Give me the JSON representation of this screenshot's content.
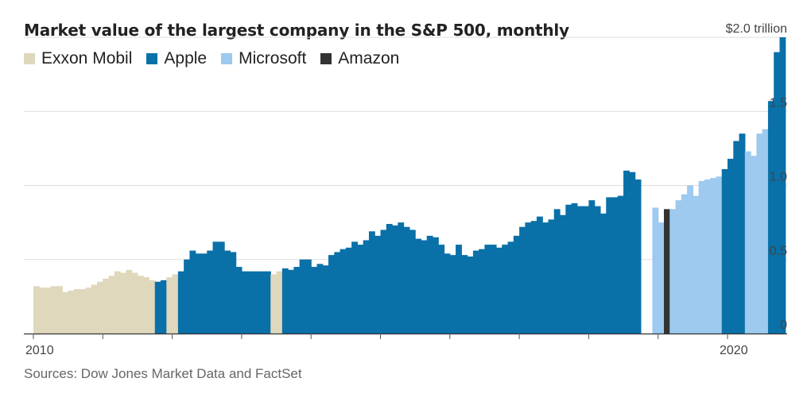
{
  "chart_data": {
    "type": "bar",
    "title": "Market value of the largest company in the S&P 500, monthly",
    "legend": [
      {
        "name": "Exxon Mobil",
        "color": "#dfd8bd"
      },
      {
        "name": "Apple",
        "color": "#0a70a8"
      },
      {
        "name": "Microsoft",
        "color": "#9dcaee"
      },
      {
        "name": "Amazon",
        "color": "#333333"
      }
    ],
    "legend_position": "top-left",
    "y_axis": {
      "ylim": [
        0,
        2.0
      ],
      "ticks": [
        {
          "value": 0,
          "label": "0"
        },
        {
          "value": 0.5,
          "label": "0.5"
        },
        {
          "value": 1.0,
          "label": "1.0"
        },
        {
          "value": 1.5,
          "label": "1.5"
        },
        {
          "value": 2.0,
          "label": "$2.0 trillion"
        }
      ],
      "side": "right",
      "grid": true
    },
    "x_axis": {
      "ticks": [
        {
          "date": "2010-01",
          "label": "2010"
        },
        {
          "date": "2020-01",
          "label": "2020"
        }
      ]
    },
    "bars": [
      {
        "start": "2010-01",
        "company": "Exxon Mobil",
        "values": [
          0.32,
          0.31,
          0.31,
          0.32,
          0.32,
          0.28,
          0.29,
          0.3,
          0.3,
          0.31,
          0.33,
          0.35,
          0.37,
          0.39,
          0.42,
          0.41,
          0.43,
          0.41,
          0.39,
          0.38,
          0.36
        ]
      },
      {
        "start": "2011-10",
        "company": "Apple",
        "values": [
          0.35,
          0.36
        ]
      },
      {
        "start": "2011-12",
        "company": "Exxon Mobil",
        "values": [
          0.38,
          0.4
        ]
      },
      {
        "start": "2012-02",
        "company": "Apple",
        "values": [
          0.42,
          0.5,
          0.56,
          0.54,
          0.54,
          0.56,
          0.62,
          0.62,
          0.56,
          0.55,
          0.45,
          0.42,
          0.42,
          0.42,
          0.42,
          0.42
        ]
      },
      {
        "start": "2013-06",
        "company": "Exxon Mobil",
        "values": [
          0.4,
          0.42
        ]
      },
      {
        "start": "2013-08",
        "company": "Apple",
        "values": [
          0.44,
          0.43,
          0.45,
          0.5,
          0.5,
          0.45,
          0.47,
          0.46,
          0.53,
          0.55,
          0.57,
          0.58,
          0.62,
          0.6,
          0.63,
          0.69,
          0.66,
          0.7,
          0.74,
          0.73,
          0.75,
          0.72,
          0.7,
          0.64,
          0.63,
          0.66,
          0.65,
          0.6,
          0.54,
          0.53,
          0.6,
          0.53,
          0.52,
          0.56,
          0.57,
          0.6,
          0.6,
          0.58,
          0.6,
          0.62,
          0.66,
          0.72,
          0.75,
          0.76,
          0.79,
          0.75,
          0.77,
          0.84,
          0.8,
          0.87,
          0.88,
          0.86,
          0.86,
          0.9,
          0.86,
          0.81,
          0.92,
          0.92,
          0.93,
          1.1,
          1.09,
          1.04
        ]
      },
      {
        "start": "2018-12",
        "company": "Microsoft",
        "values": [
          0.85,
          0.75
        ]
      },
      {
        "start": "2019-02",
        "company": "Amazon",
        "values": [
          0.84
        ]
      },
      {
        "start": "2019-03",
        "company": "Microsoft",
        "values": [
          0.84,
          0.9,
          0.94,
          1.0,
          0.93,
          1.03,
          1.04,
          1.05,
          1.06
        ]
      },
      {
        "start": "2019-12",
        "company": "Apple",
        "values": [
          1.11,
          1.18,
          1.3,
          1.35
        ]
      },
      {
        "start": "2020-04",
        "company": "Microsoft",
        "values": [
          1.23,
          1.2,
          1.35,
          1.38
        ]
      },
      {
        "start": "2020-08",
        "company": "Apple",
        "values": [
          1.57,
          1.9,
          2.0
        ]
      }
    ]
  },
  "source_note": "Sources: Dow Jones Market Data and FactSet"
}
